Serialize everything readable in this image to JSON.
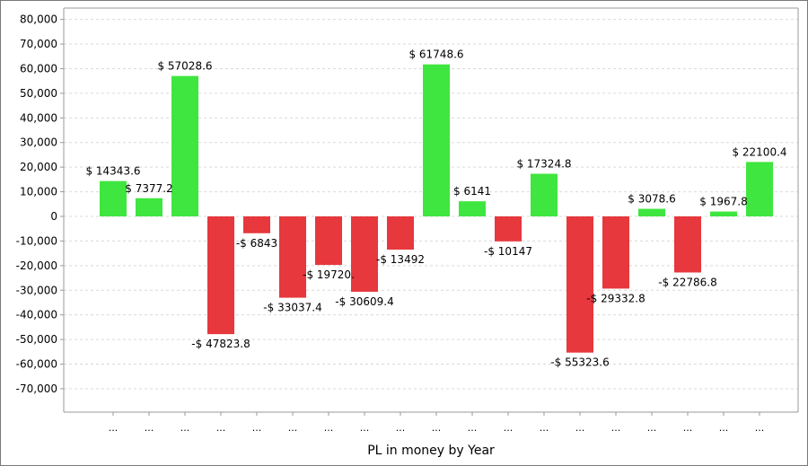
{
  "chart_data": {
    "type": "bar",
    "title": "",
    "xlabel": "PL in money by Year",
    "ylabel": "",
    "ylim": [
      -80000,
      80000
    ],
    "yticks": [
      80000,
      70000,
      60000,
      50000,
      40000,
      30000,
      20000,
      10000,
      0,
      -10000,
      -20000,
      -30000,
      -40000,
      -50000,
      -60000,
      -70000
    ],
    "ytick_labels": [
      "80,000",
      "70,000",
      "60,000",
      "50,000",
      "40,000",
      "30,000",
      "20,000",
      "10,000",
      "0",
      "-10,000",
      "-20,000",
      "-30,000",
      "-40,000",
      "-50,000",
      "-60,000",
      "-70,000"
    ],
    "grid": true,
    "categories": [
      "...",
      "...",
      "...",
      "...",
      "...",
      "...",
      "...",
      "...",
      "...",
      "...",
      "...",
      "...",
      "...",
      "...",
      "...",
      "...",
      "...",
      "...",
      "..."
    ],
    "values": [
      14343.6,
      7377.2,
      57028.6,
      -47823.8,
      -6843,
      -33037.4,
      -19720,
      -30609.4,
      -13492,
      61748.6,
      6141,
      -10147,
      17324.8,
      -55323.6,
      -29332.8,
      3078.6,
      -22786.8,
      1967.8,
      22100.4
    ],
    "data_labels": [
      "$ 14343.6",
      "$ 7377.2",
      "$ 57028.6",
      "-$ 47823.8",
      "-$ 6843",
      "-$ 33037.4",
      "-$ 19720.",
      "-$ 30609.4",
      "-$ 13492",
      "$ 61748.6",
      "$ 6141",
      "-$ 10147",
      "$ 17324.8",
      "-$ 55323.6",
      "-$ 29332.8",
      "$ 3078.6",
      "-$ 22786.8",
      "$ 1967.8",
      "$ 22100.4"
    ],
    "colors": {
      "positive": "#3fe63f",
      "negative": "#e6383d",
      "grid": "#d9d9d9",
      "axis": "#9a9a9a"
    }
  }
}
